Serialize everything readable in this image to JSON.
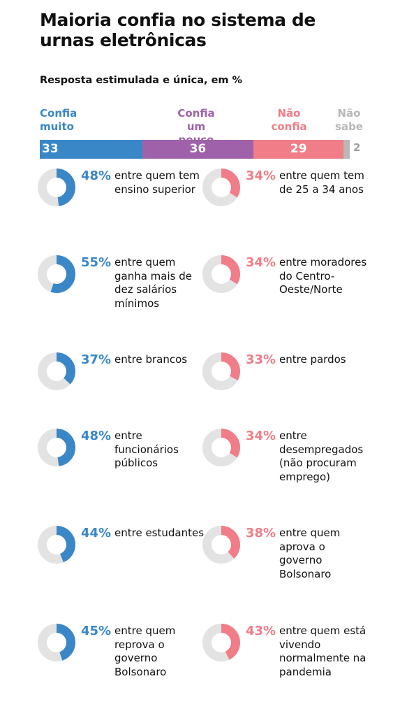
{
  "title": "Maioria confia no sistema de urnas eletrônicas",
  "subtitle": "Resposta estimulada e única, em %",
  "colors": {
    "muito": "#3a87c8",
    "pouco": "#9f62aa",
    "nao": "#f07d88",
    "ns": "#b8b8b8",
    "ring": "#e3e3e3"
  },
  "chart_data": [
    {
      "type": "bar",
      "orientation": "horizontal-stacked",
      "title": "Maioria confia no sistema de urnas eletrônicas",
      "subtitle": "Resposta estimulada e única, em %",
      "series": [
        {
          "name": "Confia muito",
          "value": 33
        },
        {
          "name": "Confia um pouco",
          "value": 36
        },
        {
          "name": "Não confia",
          "value": 29
        },
        {
          "name": "Não sabe",
          "value": 2
        }
      ]
    },
    {
      "type": "pie",
      "variant": "donut",
      "series_name": "Confia muito",
      "items": [
        {
          "value": 48,
          "pct_label": "48%",
          "desc": "entre quem tem ensino superior"
        },
        {
          "value": 55,
          "pct_label": "55%",
          "desc": "entre quem ganha mais de dez salários mínimos"
        },
        {
          "value": 37,
          "pct_label": "37%",
          "desc": "entre brancos"
        },
        {
          "value": 48,
          "pct_label": "48%",
          "desc": "entre funcionários públicos"
        },
        {
          "value": 44,
          "pct_label": "44%",
          "desc": "entre estudantes"
        },
        {
          "value": 45,
          "pct_label": "45%",
          "desc": "entre quem reprova o governo Bolsonaro"
        }
      ]
    },
    {
      "type": "pie",
      "variant": "donut",
      "series_name": "Não confia",
      "items": [
        {
          "value": 34,
          "pct_label": "34%",
          "desc": "entre quem tem de 25 a 34 anos"
        },
        {
          "value": 34,
          "pct_label": "34%",
          "desc": "entre moradores do Centro-Oeste/Norte"
        },
        {
          "value": 33,
          "pct_label": "33%",
          "desc": "entre pardos"
        },
        {
          "value": 34,
          "pct_label": "34%",
          "desc": "entre desempregados (não procuram emprego)"
        },
        {
          "value": 38,
          "pct_label": "38%",
          "desc": "entre quem aprova o governo Bolsonaro"
        },
        {
          "value": 43,
          "pct_label": "43%",
          "desc": "entre quem está vivendo normalmente na pandemia"
        }
      ]
    }
  ],
  "legend": {
    "muito_l1": "Confia",
    "muito_l2": "muito",
    "pouco_l1": "Confia",
    "pouco_l2": "um pouco",
    "nao_l1": "Não",
    "nao_l2": "confia",
    "ns_l1": "Não",
    "ns_l2": "sabe"
  },
  "bar_labels": {
    "muito": "33",
    "pouco": "36",
    "nao": "29",
    "ns": "2"
  }
}
